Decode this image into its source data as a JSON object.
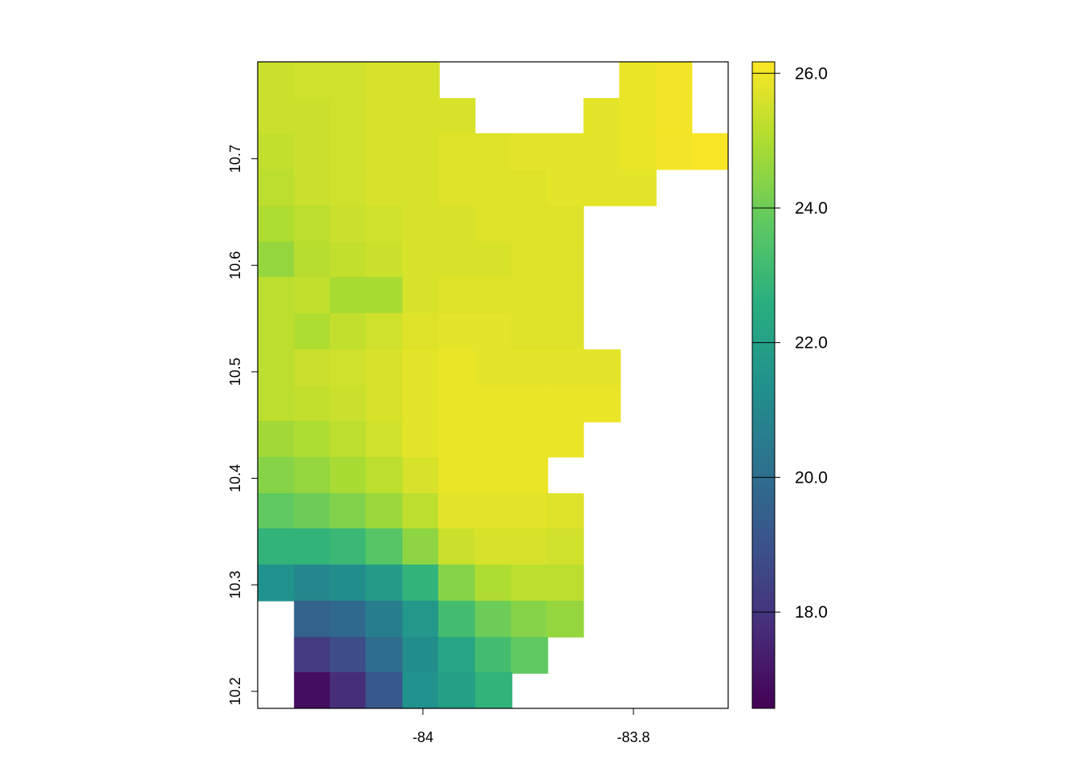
{
  "chart_data": {
    "type": "raster",
    "xlim": [
      -84.157,
      -83.71
    ],
    "ylim": [
      10.184,
      10.791
    ],
    "xticks": [
      -84,
      -83.8
    ],
    "yticks": [
      10.2,
      10.3,
      10.4,
      10.5,
      10.6,
      10.7
    ],
    "x": [
      -84.14,
      -84.105,
      -84.071,
      -84.037,
      -84.002,
      -83.968,
      -83.933,
      -83.899,
      -83.865,
      -83.83,
      -83.796,
      -83.762,
      -83.727
    ],
    "y": [
      10.774,
      10.74,
      10.707,
      10.673,
      10.639,
      10.605,
      10.572,
      10.538,
      10.504,
      10.47,
      10.437,
      10.403,
      10.369,
      10.336,
      10.302,
      10.268,
      10.234,
      10.201
    ],
    "values": [
      [
        25.4,
        25.5,
        25.5,
        25.6,
        25.6,
        null,
        null,
        null,
        null,
        null,
        25.9,
        26.0,
        null
      ],
      [
        25.4,
        25.4,
        25.5,
        25.6,
        25.6,
        25.6,
        null,
        null,
        null,
        25.8,
        25.9,
        26.0,
        null
      ],
      [
        25.3,
        25.4,
        25.5,
        25.6,
        25.6,
        25.7,
        25.7,
        25.8,
        25.8,
        25.8,
        25.9,
        26.0,
        26.1
      ],
      [
        25.2,
        25.4,
        25.5,
        25.6,
        25.6,
        25.7,
        25.7,
        25.7,
        25.8,
        25.8,
        25.8,
        null,
        null
      ],
      [
        25.0,
        25.2,
        25.4,
        25.5,
        25.6,
        25.6,
        25.7,
        25.7,
        25.7,
        null,
        null,
        null,
        null
      ],
      [
        24.6,
        25.1,
        25.3,
        25.4,
        25.6,
        25.6,
        25.6,
        25.7,
        25.7,
        null,
        null,
        null,
        null
      ],
      [
        25.2,
        25.3,
        24.9,
        24.9,
        25.6,
        25.7,
        25.7,
        25.7,
        25.7,
        null,
        null,
        null,
        null
      ],
      [
        25.2,
        25.0,
        25.3,
        25.5,
        25.7,
        25.8,
        25.8,
        25.7,
        25.7,
        null,
        null,
        null,
        null
      ],
      [
        25.2,
        25.4,
        25.5,
        25.6,
        25.8,
        25.9,
        25.8,
        25.8,
        25.8,
        25.8,
        null,
        null,
        null
      ],
      [
        25.2,
        25.3,
        25.4,
        25.6,
        25.8,
        25.9,
        25.9,
        25.9,
        25.9,
        25.9,
        null,
        null,
        null
      ],
      [
        24.8,
        25.0,
        25.2,
        25.5,
        25.8,
        25.9,
        25.9,
        25.9,
        25.9,
        null,
        null,
        null,
        null
      ],
      [
        24.4,
        24.6,
        24.9,
        25.2,
        25.6,
        25.9,
        25.9,
        25.9,
        null,
        null,
        null,
        null,
        null
      ],
      [
        23.8,
        24.0,
        24.3,
        24.7,
        25.2,
        25.8,
        25.8,
        25.8,
        25.7,
        null,
        null,
        null,
        null
      ],
      [
        22.8,
        22.8,
        23.0,
        23.6,
        24.5,
        25.4,
        25.6,
        25.6,
        25.5,
        null,
        null,
        null,
        null
      ],
      [
        21.4,
        21.0,
        21.2,
        21.8,
        22.8,
        24.4,
        25.0,
        25.2,
        25.2,
        null,
        null,
        null,
        null
      ],
      [
        null,
        19.6,
        19.8,
        20.6,
        21.6,
        23.2,
        24.0,
        24.4,
        24.6,
        null,
        null,
        null,
        null
      ],
      [
        null,
        18.2,
        18.8,
        20.0,
        21.2,
        22.2,
        23.2,
        23.8,
        null,
        null,
        null,
        null,
        null
      ],
      [
        null,
        16.9,
        17.8,
        19.2,
        21.4,
        22.0,
        22.8,
        null,
        null,
        null,
        null,
        null,
        null
      ]
    ],
    "zlim": [
      16.57,
      26.17
    ],
    "zticks": [
      {
        "value": 18,
        "label": "18.0"
      },
      {
        "value": 20,
        "label": "20.0"
      },
      {
        "value": 22,
        "label": "22.0"
      },
      {
        "value": 24,
        "label": "24.0"
      },
      {
        "value": 26,
        "label": "26.0"
      }
    ],
    "colors": [
      "#440154",
      "#472d7b",
      "#3b528b",
      "#2c728e",
      "#21918c",
      "#28ae80",
      "#5ec962",
      "#addc30",
      "#fde725"
    ]
  }
}
